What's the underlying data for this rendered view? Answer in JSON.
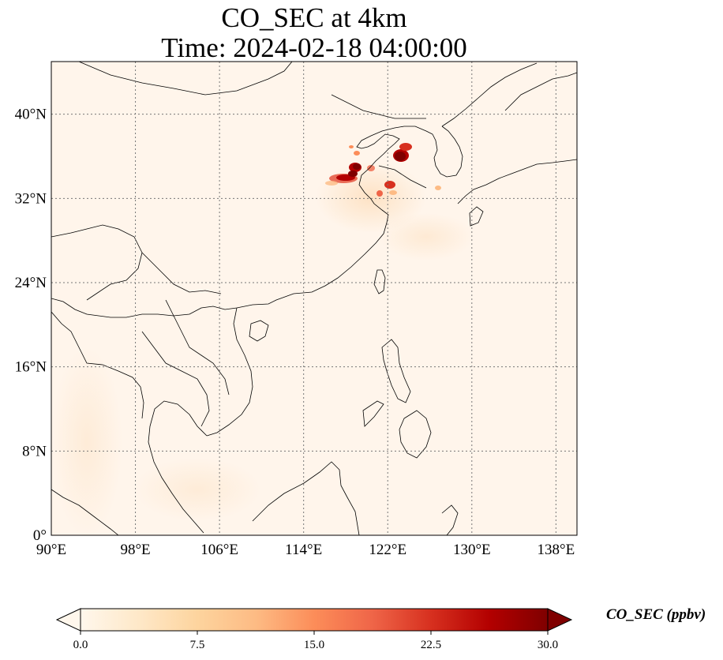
{
  "title": {
    "line1": "CO_SEC at 4km",
    "line2": "Time: 2024-02-18 04:00:00"
  },
  "map": {
    "lon_ticks": [
      {
        "value": 90,
        "label": "90°E"
      },
      {
        "value": 98,
        "label": "98°E"
      },
      {
        "value": 106,
        "label": "106°E"
      },
      {
        "value": 114,
        "label": "114°E"
      },
      {
        "value": 122,
        "label": "122°E"
      },
      {
        "value": 130,
        "label": "130°E"
      },
      {
        "value": 138,
        "label": "138°E"
      }
    ],
    "lat_ticks": [
      {
        "value": 0,
        "label": "0°"
      },
      {
        "value": 8,
        "label": "8°N"
      },
      {
        "value": 16,
        "label": "16°N"
      },
      {
        "value": 24,
        "label": "24°N"
      },
      {
        "value": 32,
        "label": "32°N"
      },
      {
        "value": 40,
        "label": "40°N"
      }
    ],
    "extent": {
      "lon": [
        90,
        140
      ],
      "lat": [
        0,
        45
      ]
    },
    "gridlines": true,
    "background_color": "#fff5eb",
    "plume_color_high": "#7f0000"
  },
  "colorbar": {
    "label": "CO_SEC (ppbv)",
    "min": 0.0,
    "max": 30.0,
    "ticks": [
      "0.0",
      "7.5",
      "15.0",
      "22.5",
      "30.0"
    ],
    "colormap": "OrRd",
    "colors": [
      "#fff7ec",
      "#fee8c8",
      "#fdd49e",
      "#fdbb84",
      "#fc8d59",
      "#ef6548",
      "#d7301f",
      "#b30000",
      "#7f0000"
    ]
  }
}
